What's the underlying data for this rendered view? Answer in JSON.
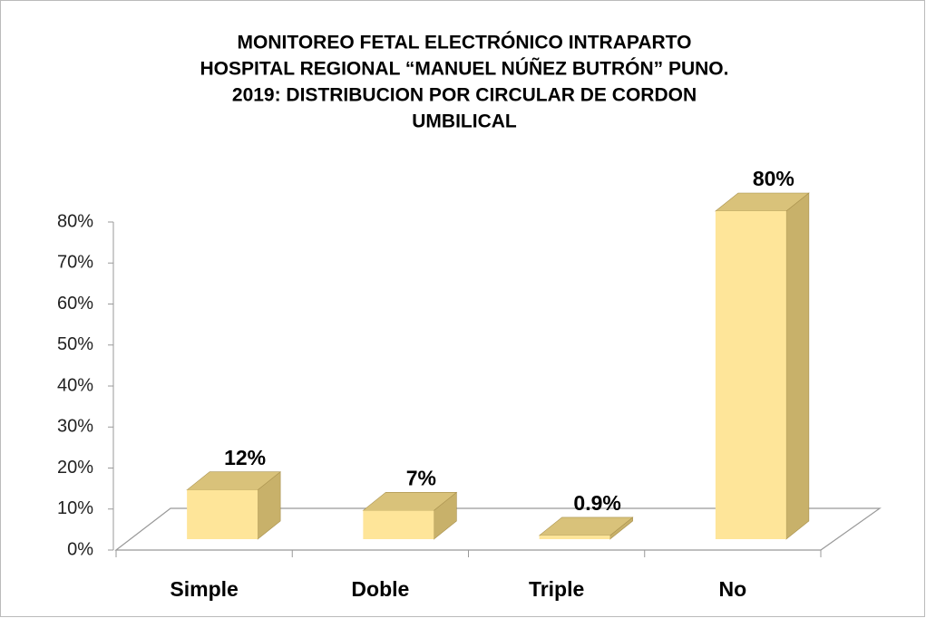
{
  "chart_data": {
    "type": "bar3d",
    "title": [
      "MONITOREO FETAL ELECTRÓNICO  INTRAPARTO",
      "HOSPITAL REGIONAL “MANUEL NÚÑEZ BUTRÓN” PUNO.",
      "2019:   DISTRIBUCION POR CIRCULAR DE CORDON",
      "UMBILICAL"
    ],
    "categories": [
      "Simple",
      "Doble",
      "Triple",
      "No"
    ],
    "values": [
      12,
      7,
      0.9,
      80
    ],
    "value_labels": [
      "12%",
      "7%",
      "0.9%",
      "80%"
    ],
    "color": "#fee599",
    "ylim": [
      0,
      80
    ],
    "yticks": [
      {
        "value": 0,
        "label": "0%"
      },
      {
        "value": 10,
        "label": "10%"
      },
      {
        "value": 20,
        "label": "20%"
      },
      {
        "value": 30,
        "label": "30%"
      },
      {
        "value": 40,
        "label": "40%"
      },
      {
        "value": 50,
        "label": "50%"
      },
      {
        "value": 60,
        "label": "60%"
      },
      {
        "value": 70,
        "label": "70%"
      },
      {
        "value": 80,
        "label": "80%"
      }
    ],
    "grid": false
  }
}
